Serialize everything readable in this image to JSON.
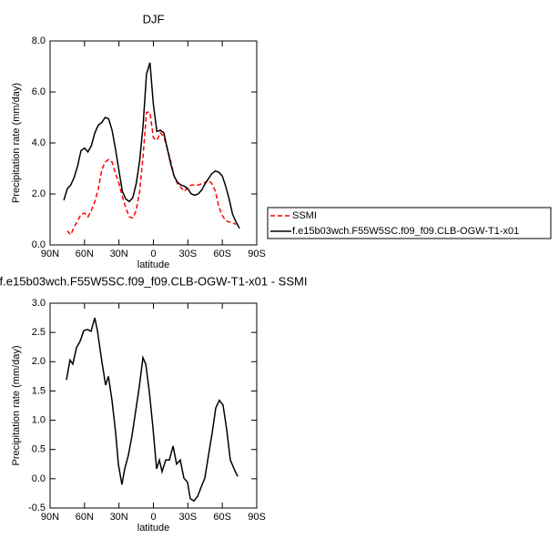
{
  "chart_data": [
    {
      "type": "line",
      "title": "DJF",
      "xlabel": "latitude",
      "ylabel": "Precipitation rate (mm/day)",
      "x": [
        78,
        75,
        72,
        69,
        66,
        63,
        60,
        57,
        54,
        51,
        48,
        45,
        42,
        39,
        36,
        33,
        30,
        27,
        24,
        21,
        18,
        15,
        12,
        9,
        6,
        3,
        0,
        -3,
        -6,
        -9,
        -12,
        -15,
        -18,
        -21,
        -24,
        -27,
        -30,
        -33,
        -36,
        -39,
        -42,
        -45,
        -48,
        -51,
        -54,
        -57,
        -60,
        -63,
        -66,
        -69,
        -72,
        -75
      ],
      "series": [
        {
          "name": "SSMI",
          "color": "#ff0000",
          "dash": true,
          "values": [
            null,
            0.55,
            0.4,
            0.7,
            0.95,
            1.2,
            1.25,
            1.1,
            1.35,
            1.7,
            2.2,
            2.95,
            3.25,
            3.35,
            3.25,
            2.8,
            2.4,
            1.9,
            1.45,
            1.1,
            1.05,
            1.35,
            2.1,
            3.5,
            5.2,
            5.2,
            4.2,
            4.1,
            4.4,
            4.25,
            3.8,
            3.3,
            2.7,
            2.4,
            2.25,
            2.1,
            2.25,
            2.35,
            2.35,
            2.35,
            2.4,
            2.45,
            2.55,
            2.4,
            2.1,
            1.5,
            1.15,
            0.95,
            0.9,
            0.88,
            0.8,
            null
          ]
        },
        {
          "name": "f.e15b03wch.F55W5SC.f09_f09.CLB-OGW-T1-x01",
          "color": "#000000",
          "dash": false,
          "values": [
            1.75,
            2.2,
            2.35,
            2.65,
            3.1,
            3.7,
            3.8,
            3.65,
            3.9,
            4.4,
            4.7,
            4.8,
            5.0,
            4.95,
            4.5,
            3.75,
            2.9,
            2.1,
            1.8,
            1.7,
            1.85,
            2.4,
            3.3,
            4.7,
            6.7,
            7.15,
            5.5,
            4.45,
            4.5,
            4.4,
            3.8,
            3.2,
            2.7,
            2.45,
            2.35,
            2.3,
            2.2,
            2.0,
            1.95,
            2.0,
            2.15,
            2.4,
            2.6,
            2.8,
            2.9,
            2.85,
            2.7,
            2.3,
            1.8,
            1.2,
            0.9,
            0.65
          ]
        }
      ],
      "xlim": [
        90,
        -90
      ],
      "xticks": [
        {
          "value": 90,
          "label": "90N"
        },
        {
          "value": 60,
          "label": "60N"
        },
        {
          "value": 30,
          "label": "30N"
        },
        0,
        {
          "value": -30,
          "label": "30S"
        },
        {
          "value": -60,
          "label": "60S"
        },
        {
          "value": -90,
          "label": "90S"
        }
      ],
      "ylim": [
        0,
        8
      ],
      "yticks": [
        {
          "value": 0,
          "label": "0.0"
        },
        {
          "value": 2,
          "label": "2.0"
        },
        {
          "value": 4,
          "label": "4.0"
        },
        {
          "value": 6,
          "label": "6.0"
        },
        {
          "value": 8,
          "label": "8.0"
        }
      ],
      "legend": "right"
    },
    {
      "type": "line",
      "title": "f.e15b03wch.F55W5SC.f09_f09.CLB-OGW-T1-x01 - SSMI",
      "xlabel": "latitude",
      "ylabel": "Precipitation rate (mm/day)",
      "x": [
        75.7,
        72.6,
        70.2,
        67,
        63.8,
        60.7,
        57.5,
        54.3,
        51.1,
        48.8,
        44.8,
        41.6,
        39.2,
        36.1,
        32.9,
        30.5,
        27.4,
        25,
        21.8,
        18.6,
        15.5,
        12.3,
        9.1,
        6.7,
        3.6,
        0.4,
        -2.8,
        -5.2,
        -7.5,
        -10.7,
        -13.9,
        -17.1,
        -20.2,
        -23.4,
        -26.6,
        -29.7,
        -32.1,
        -35.3,
        -38.5,
        -41.6,
        -44.8,
        -48,
        -51.2,
        -54.3,
        -57.5,
        -60.7,
        -63.8,
        -67,
        -71,
        -73.4
      ],
      "series": [
        {
          "color": "#000000",
          "dash": false,
          "values": [
            1.69,
            2.03,
            1.96,
            2.24,
            2.35,
            2.53,
            2.55,
            2.52,
            2.75,
            2.53,
            1.99,
            1.6,
            1.75,
            1.34,
            0.79,
            0.25,
            -0.1,
            0.17,
            0.4,
            0.74,
            1.15,
            1.57,
            2.07,
            1.96,
            1.49,
            0.87,
            0.17,
            0.32,
            0.12,
            0.32,
            0.32,
            0.56,
            0.25,
            0.32,
            0.01,
            -0.06,
            -0.34,
            -0.38,
            -0.3,
            -0.14,
            0.01,
            0.4,
            0.79,
            1.21,
            1.34,
            1.26,
            0.84,
            0.32,
            0.14,
            0.04
          ]
        }
      ],
      "xlim": [
        90,
        -90
      ],
      "xticks": [
        {
          "value": 90,
          "label": "90N"
        },
        {
          "value": 60,
          "label": "60N"
        },
        {
          "value": 30,
          "label": "30N"
        },
        0,
        {
          "value": -30,
          "label": "30S"
        },
        {
          "value": -60,
          "label": "60S"
        },
        {
          "value": -90,
          "label": "90S"
        }
      ],
      "ylim": [
        -0.5,
        3
      ],
      "yticks": [
        -0.5,
        {
          "value": 0,
          "label": "0.0"
        },
        0.5,
        {
          "value": 1,
          "label": "1.0"
        },
        1.5,
        {
          "value": 2,
          "label": "2.0"
        },
        2.5,
        {
          "value": 3,
          "label": "3.0"
        }
      ]
    }
  ]
}
